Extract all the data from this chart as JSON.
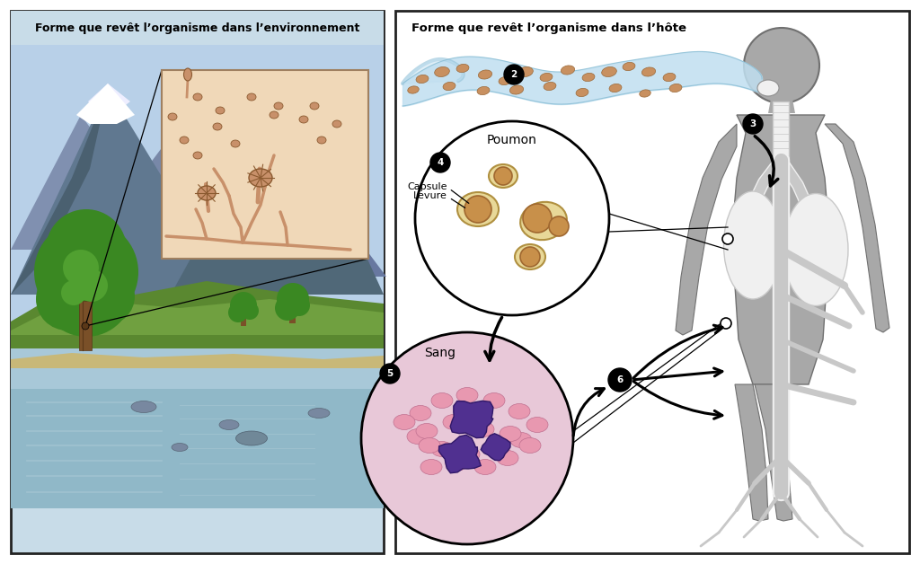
{
  "title_left": "Forme que revêt l’organisme dans l’environnement",
  "title_right": "Forme que revêt l’organisme dans l’hôte",
  "label_poumon": "Poumon",
  "label_sang": "Sang",
  "label_capsule": "Capsule",
  "label_levure": "Levure",
  "bg_color": "#ffffff",
  "panel_left_bg": "#c8dce8",
  "border_color": "#222222",
  "inset_bg": "#f0d8b8",
  "spore_color": "#c8906a",
  "spore_outline": "#8b5a30",
  "air_color": "#c0dff0",
  "body_color": "#a8a8a8",
  "yeast_fill": "#c8904a",
  "yeast_capsule": "#e8d090",
  "blood_bg": "#e8c8d8",
  "blood_cell_color": "#e090a8",
  "crypto_color": "#503090",
  "vessel_color": "#c8c8c8",
  "lung_white": "#f0f0f0",
  "arrow_color": "#111111"
}
